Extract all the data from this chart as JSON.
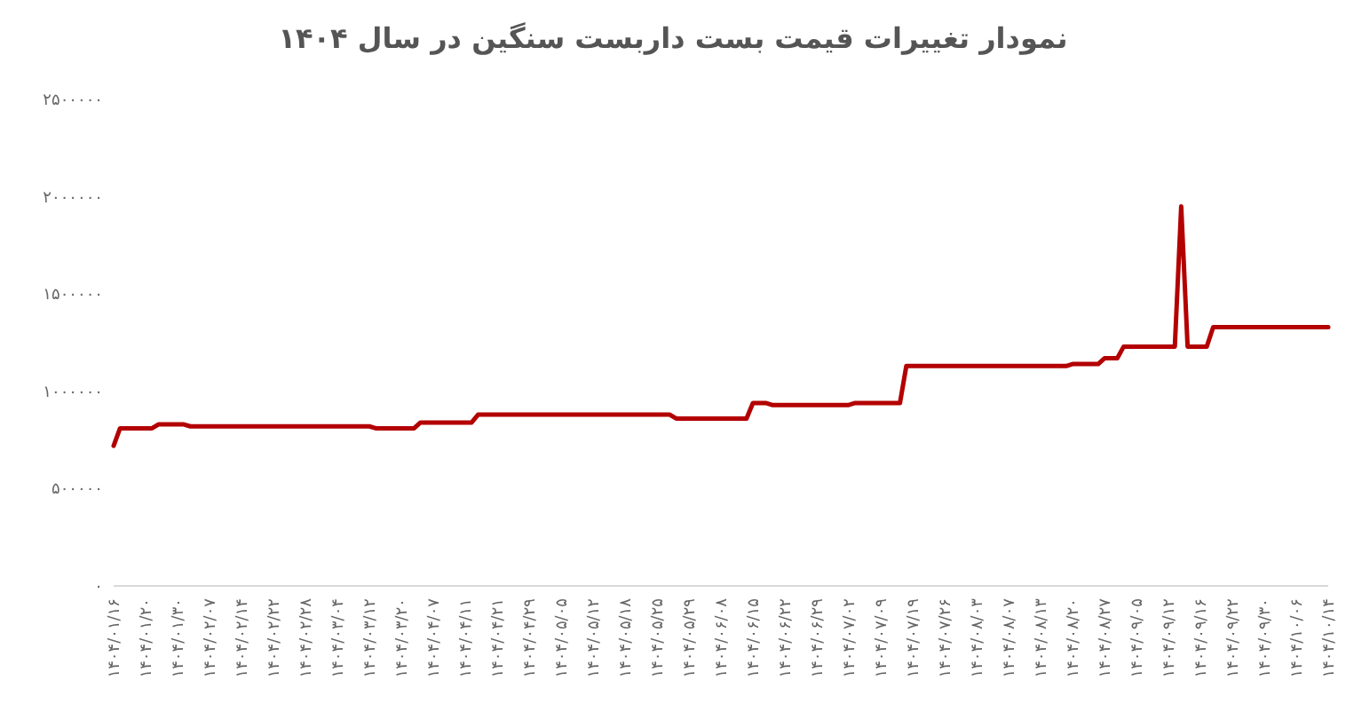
{
  "chart_data": {
    "type": "line",
    "title": "نمودار تغییرات قیمت بست داربست سنگین در سال ۱۴۰۴",
    "categories": [
      "۱۴۰۴/۰۱/۱۶",
      null,
      null,
      null,
      null,
      "۱۴۰۴/۰۱/۲۰",
      null,
      null,
      null,
      null,
      "۱۴۰۴/۰۱/۳۰",
      null,
      null,
      null,
      null,
      "۱۴۰۴/۰۲/۰۷",
      null,
      null,
      null,
      null,
      "۱۴۰۴/۰۲/۱۴",
      null,
      null,
      null,
      null,
      "۱۴۰۴/۰۲/۲۲",
      null,
      null,
      null,
      null,
      "۱۴۰۴/۰۲/۲۸",
      null,
      null,
      null,
      null,
      "۱۴۰۴/۰۳/۰۴",
      null,
      null,
      null,
      null,
      "۱۴۰۴/۰۳/۱۲",
      null,
      null,
      null,
      null,
      "۱۴۰۴/۰۳/۲۰",
      null,
      null,
      null,
      null,
      "۱۴۰۴/۰۴/۰۷",
      null,
      null,
      null,
      null,
      "۱۴۰۴/۰۴/۱۱",
      null,
      null,
      null,
      null,
      "۱۴۰۴/۰۴/۲۱",
      null,
      null,
      null,
      null,
      "۱۴۰۴/۰۴/۲۹",
      null,
      null,
      null,
      null,
      "۱۴۰۴/۰۵/۰۵",
      null,
      null,
      null,
      null,
      "۱۴۰۴/۰۵/۱۲",
      null,
      null,
      null,
      null,
      "۱۴۰۴/۰۵/۱۸",
      null,
      null,
      null,
      null,
      "۱۴۰۴/۰۵/۲۵",
      null,
      null,
      null,
      null,
      "۱۴۰۴/۰۵/۲۹",
      null,
      null,
      null,
      null,
      "۱۴۰۴/۰۶/۰۸",
      null,
      null,
      null,
      null,
      "۱۴۰۴/۰۶/۱۵",
      null,
      null,
      null,
      null,
      "۱۴۰۴/۰۶/۲۲",
      null,
      null,
      null,
      null,
      "۱۴۰۴/۰۶/۲۹",
      null,
      null,
      null,
      null,
      "۱۴۰۴/۰۷/۰۲",
      null,
      null,
      null,
      null,
      "۱۴۰۴/۰۷/۰۹",
      null,
      null,
      null,
      null,
      "۱۴۰۴/۰۷/۱۹",
      null,
      null,
      null,
      null,
      "۱۴۰۴/۰۷/۲۶",
      null,
      null,
      null,
      null,
      "۱۴۰۴/۰۸/۰۳",
      null,
      null,
      null,
      null,
      "۱۴۰۴/۰۸/۰۷",
      null,
      null,
      null,
      null,
      "۱۴۰۴/۰۸/۱۳",
      null,
      null,
      null,
      null,
      "۱۴۰۴/۰۸/۲۰",
      null,
      null,
      null,
      null,
      "۱۴۰۴/۰۸/۲۷",
      null,
      null,
      null,
      null,
      "۱۴۰۴/۰۹/۰۵",
      null,
      null,
      null,
      null,
      "۱۴۰۴/۰۹/۱۲",
      null,
      null,
      null,
      null,
      "۱۴۰۴/۰۹/۱۶",
      null,
      null,
      null,
      null,
      "۱۴۰۴/۰۹/۲۲",
      null,
      null,
      null,
      null,
      "۱۴۰۴/۰۹/۳۰",
      null,
      null,
      null,
      null,
      "۱۴۰۴/۱۰/۰۶",
      null,
      null,
      null,
      null,
      "۱۴۰۴/۱۰/۱۴"
    ],
    "values": [
      720000,
      810000,
      810000,
      810000,
      810000,
      810000,
      810000,
      830000,
      830000,
      830000,
      830000,
      830000,
      820000,
      820000,
      820000,
      820000,
      820000,
      820000,
      820000,
      820000,
      820000,
      820000,
      820000,
      820000,
      820000,
      820000,
      820000,
      820000,
      820000,
      820000,
      820000,
      820000,
      820000,
      820000,
      820000,
      820000,
      820000,
      820000,
      820000,
      820000,
      820000,
      810000,
      810000,
      810000,
      810000,
      810000,
      810000,
      810000,
      840000,
      840000,
      840000,
      840000,
      840000,
      840000,
      840000,
      840000,
      840000,
      880000,
      880000,
      880000,
      880000,
      880000,
      880000,
      880000,
      880000,
      880000,
      880000,
      880000,
      880000,
      880000,
      880000,
      880000,
      880000,
      880000,
      880000,
      880000,
      880000,
      880000,
      880000,
      880000,
      880000,
      880000,
      880000,
      880000,
      880000,
      880000,
      880000,
      880000,
      860000,
      860000,
      860000,
      860000,
      860000,
      860000,
      860000,
      860000,
      860000,
      860000,
      860000,
      860000,
      940000,
      940000,
      940000,
      930000,
      930000,
      930000,
      930000,
      930000,
      930000,
      930000,
      930000,
      930000,
      930000,
      930000,
      930000,
      930000,
      940000,
      940000,
      940000,
      940000,
      940000,
      940000,
      940000,
      940000,
      1130000,
      1130000,
      1130000,
      1130000,
      1130000,
      1130000,
      1130000,
      1130000,
      1130000,
      1130000,
      1130000,
      1130000,
      1130000,
      1130000,
      1130000,
      1130000,
      1130000,
      1130000,
      1130000,
      1130000,
      1130000,
      1130000,
      1130000,
      1130000,
      1130000,
      1130000,
      1140000,
      1140000,
      1140000,
      1140000,
      1140000,
      1170000,
      1170000,
      1170000,
      1230000,
      1230000,
      1230000,
      1230000,
      1230000,
      1230000,
      1230000,
      1230000,
      1230000,
      1950000,
      1230000,
      1230000,
      1230000,
      1230000,
      1330000,
      1330000,
      1330000,
      1330000,
      1330000,
      1330000,
      1330000,
      1330000,
      1330000,
      1330000,
      1330000,
      1330000,
      1330000,
      1330000,
      1330000,
      1330000,
      1330000,
      1330000,
      1330000
    ],
    "color": "#b30000",
    "ylim": [
      0,
      2500000
    ],
    "yticks": [
      {
        "value": 0,
        "label": "۰"
      },
      {
        "value": 500000,
        "label": "۵۰۰۰۰۰"
      },
      {
        "value": 1000000,
        "label": "۱۰۰۰۰۰۰"
      },
      {
        "value": 1500000,
        "label": "۱۵۰۰۰۰۰"
      },
      {
        "value": 2000000,
        "label": "۲۰۰۰۰۰۰"
      },
      {
        "value": 2500000,
        "label": "۲۵۰۰۰۰۰"
      }
    ],
    "grid": false
  }
}
